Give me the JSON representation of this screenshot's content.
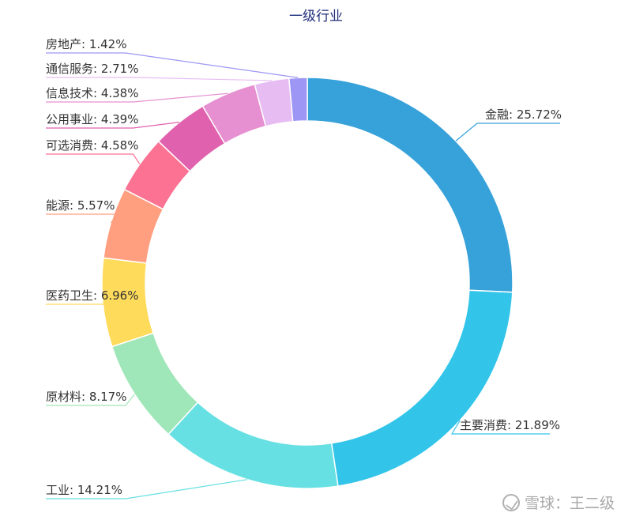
{
  "chart_data": {
    "type": "pie",
    "variant": "donut",
    "title": "一级行业",
    "slices": [
      {
        "name": "金融",
        "value": 25.72,
        "label": "金融: 25.72%",
        "color": "#37a2da"
      },
      {
        "name": "主要消费",
        "value": 21.89,
        "label": "主要消费: 21.89%",
        "color": "#32c5e9"
      },
      {
        "name": "工业",
        "value": 14.21,
        "label": "工业: 14.21%",
        "color": "#67e0e3"
      },
      {
        "name": "原材料",
        "value": 8.17,
        "label": "原材料: 8.17%",
        "color": "#9fe6b8"
      },
      {
        "name": "医药卫生",
        "value": 6.96,
        "label": "医药卫生: 6.96%",
        "color": "#ffdb5c"
      },
      {
        "name": "能源",
        "value": 5.57,
        "label": "能源: 5.57%",
        "color": "#ff9f7f"
      },
      {
        "name": "可选消费",
        "value": 4.58,
        "label": "可选消费: 4.58%",
        "color": "#fb7293"
      },
      {
        "name": "公用事业",
        "value": 4.39,
        "label": "公用事业: 4.39%",
        "color": "#e062ae"
      },
      {
        "name": "信息技术",
        "value": 4.38,
        "label": "信息技术: 4.38%",
        "color": "#e690d1"
      },
      {
        "name": "通信服务",
        "value": 2.71,
        "label": "通信服务: 2.71%",
        "color": "#e7bcf3"
      },
      {
        "name": "房地产",
        "value": 1.42,
        "label": "房地产: 1.42%",
        "color": "#9d96f5"
      }
    ]
  },
  "watermark": {
    "text": "雪球：王二级",
    "icon": "snowball-logo-icon"
  }
}
